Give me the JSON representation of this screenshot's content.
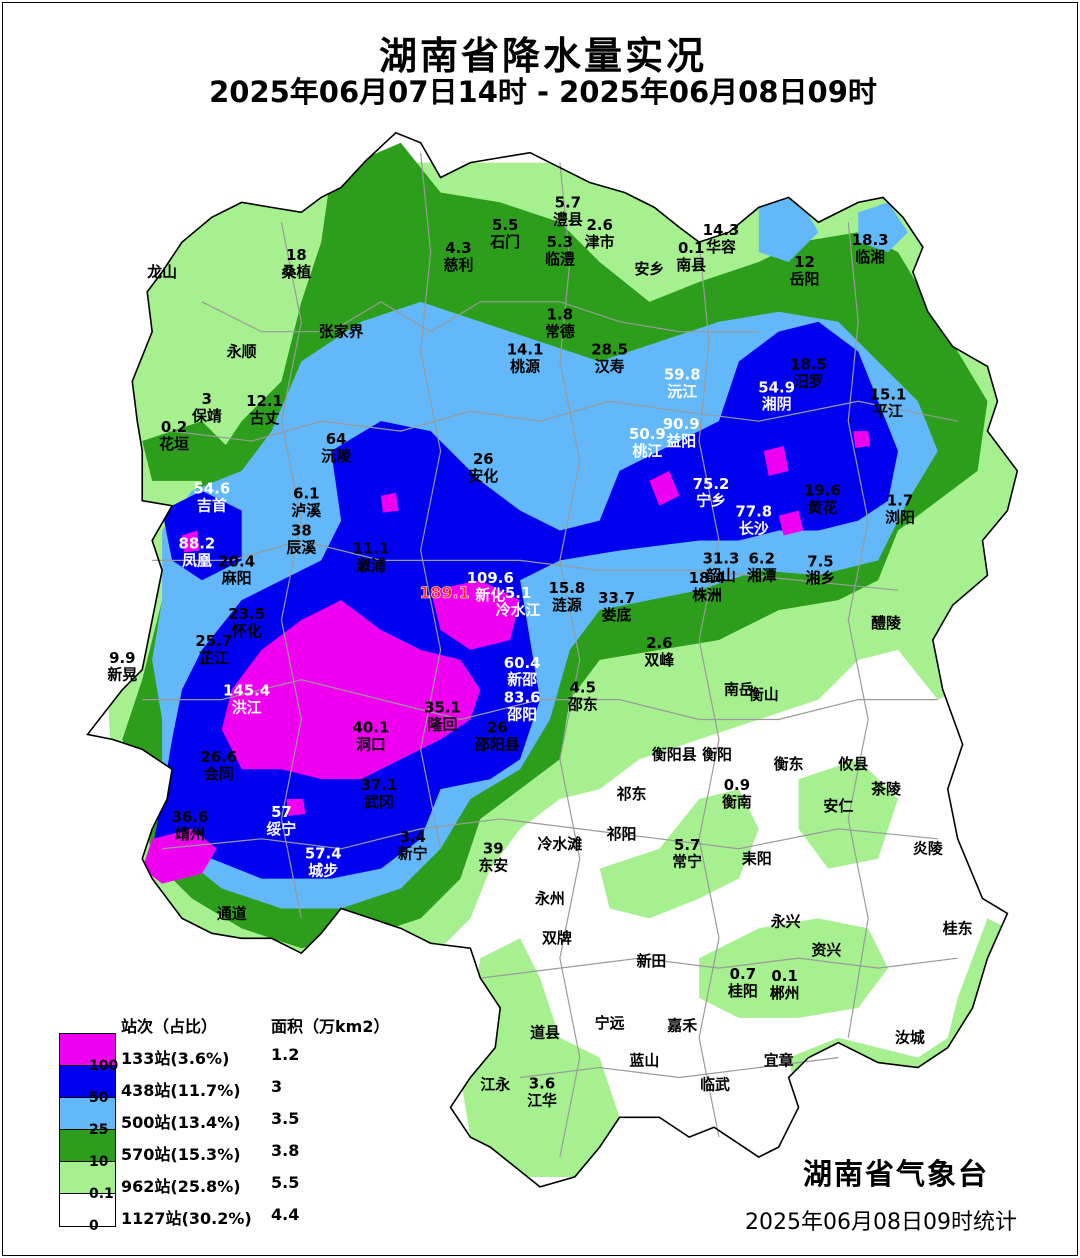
{
  "title": "湖南省降水量实况",
  "subtitle": "2025年06月07日14时 - 2025年06月08日09时",
  "agency": "湖南省气象台",
  "stat_time": "2025年06月08日09时统计",
  "colors": {
    "over100": "#f000f0",
    "r50_100": "#0000f0",
    "r25_50": "#62b8f8",
    "r10_25": "#2c9e1c",
    "r01_10": "#a6f090",
    "r0_01": "#ffffff",
    "boundary": "#9a9a9a"
  },
  "legend": {
    "header_count": "站次（占比）",
    "header_area": "面积（万km2）",
    "rows": [
      {
        "count": "133站(3.6%)",
        "area": "1.2",
        "color": "#f000f0"
      },
      {
        "count": "438站(11.7%)",
        "area": "3",
        "color": "#0000f0"
      },
      {
        "count": "500站(13.4%)",
        "area": "3.5",
        "color": "#62b8f8"
      },
      {
        "count": "570站(15.3%)",
        "area": "3.8",
        "color": "#2c9e1c"
      },
      {
        "count": "962站(25.8%)",
        "area": "5.5",
        "color": "#a6f090"
      },
      {
        "count": "1127站(30.2%)",
        "area": "4.4",
        "color": "#ffffff"
      }
    ],
    "ticks": [
      "100",
      "50",
      "25",
      "10",
      "0.1",
      "0"
    ]
  },
  "places": [
    {
      "name": "龙山"
    },
    {
      "name": "桑植",
      "value": "18"
    },
    {
      "name": "慈利",
      "value": "4.3"
    },
    {
      "name": "石门",
      "value": "5.5"
    },
    {
      "name": "澧县",
      "value": "5.7"
    },
    {
      "name": "临澧",
      "value": "5.3"
    },
    {
      "name": "津市",
      "value": "2.6"
    },
    {
      "name": "安乡"
    },
    {
      "name": "南县",
      "value": "0.1"
    },
    {
      "name": "华容",
      "value": "14.3"
    },
    {
      "name": "岳阳",
      "value": "12"
    },
    {
      "name": "临湘",
      "value": "18.3"
    },
    {
      "name": "张家界"
    },
    {
      "name": "永顺"
    },
    {
      "name": "常德",
      "value": "1.8"
    },
    {
      "name": "桃源",
      "value": "14.1"
    },
    {
      "name": "汉寿",
      "value": "28.5"
    },
    {
      "name": "沅江",
      "value": "59.8"
    },
    {
      "name": "湘阴",
      "value": "54.9"
    },
    {
      "name": "汨罗",
      "value": "18.5"
    },
    {
      "name": "平江",
      "value": "15.1"
    },
    {
      "name": "保靖",
      "value": "3"
    },
    {
      "name": "古丈",
      "value": "12.1"
    },
    {
      "name": "花垣",
      "value": "0.2"
    },
    {
      "name": "沅陵",
      "value": "64"
    },
    {
      "name": "安化",
      "value": "26"
    },
    {
      "name": "桃江",
      "value": "50.9"
    },
    {
      "name": "益阳",
      "value": "90.9"
    },
    {
      "name": "吉首",
      "value": "54.6"
    },
    {
      "name": "泸溪",
      "value": "6.1"
    },
    {
      "name": "宁乡",
      "value": "75.2"
    },
    {
      "name": "长沙",
      "value": "77.8"
    },
    {
      "name": "黄花",
      "value": "19.6"
    },
    {
      "name": "浏阳",
      "value": "1.7"
    },
    {
      "name": "辰溪",
      "value": "38"
    },
    {
      "name": "凤凰",
      "value": "88.2"
    },
    {
      "name": "麻阳",
      "value": "20.4"
    },
    {
      "name": "溆浦",
      "value": "11.1"
    },
    {
      "name": "新化",
      "value": "109.6"
    },
    {
      "name": "冷水江",
      "value": "5.1"
    },
    {
      "name": "涟源",
      "value": "15.8"
    },
    {
      "name": "娄底",
      "value": "33.7"
    },
    {
      "name": "韶山",
      "value": "31.3"
    },
    {
      "name": "湘潭",
      "value": "6.2"
    },
    {
      "name": "湘乡",
      "value": "7.5"
    },
    {
      "name": "株洲",
      "value": "18.4"
    },
    {
      "name": "怀化",
      "value": "23.5"
    },
    {
      "name": "醴陵"
    },
    {
      "name": "芷江",
      "value": "25.7"
    },
    {
      "name": "新晃",
      "value": "9.9"
    },
    {
      "name": "双峰",
      "value": "2.6"
    },
    {
      "name": "洪江",
      "value": "145.4"
    },
    {
      "name": "新邵",
      "value": "60.4"
    },
    {
      "name": "邵阳",
      "value": "83.6"
    },
    {
      "name": "邵东",
      "value": "4.5"
    },
    {
      "name": "南岳"
    },
    {
      "name": "衡山"
    },
    {
      "name": "隆回",
      "value": "35.1"
    },
    {
      "name": "洞口",
      "value": "40.1"
    },
    {
      "name": "邵阳县",
      "value": "26"
    },
    {
      "name": "衡阳县"
    },
    {
      "name": "衡阳"
    },
    {
      "name": "衡东"
    },
    {
      "name": "攸县"
    },
    {
      "name": "会同",
      "value": "26.6"
    },
    {
      "name": "衡南",
      "value": "0.9"
    },
    {
      "name": "茶陵"
    },
    {
      "name": "祁东"
    },
    {
      "name": "安仁"
    },
    {
      "name": "武冈",
      "value": "37.1"
    },
    {
      "name": "绥宁",
      "value": "57"
    },
    {
      "name": "靖州",
      "value": "36.6"
    },
    {
      "name": "炎陵"
    },
    {
      "name": "新宁",
      "value": "3.4"
    },
    {
      "name": "城步",
      "value": "57.4"
    },
    {
      "name": "东安",
      "value": "39"
    },
    {
      "name": "冷水滩"
    },
    {
      "name": "祁阳"
    },
    {
      "name": "常宁",
      "value": "5.7"
    },
    {
      "name": "耒阳"
    },
    {
      "name": "通道"
    },
    {
      "name": "永州"
    },
    {
      "name": "双牌"
    },
    {
      "name": "永兴"
    },
    {
      "name": "资兴"
    },
    {
      "name": "桂东"
    },
    {
      "name": "新田"
    },
    {
      "name": "桂阳",
      "value": "0.7"
    },
    {
      "name": "郴州",
      "value": "0.1"
    },
    {
      "name": "宁远"
    },
    {
      "name": "嘉禾"
    },
    {
      "name": "道县"
    },
    {
      "name": "汝城"
    },
    {
      "name": "蓝山"
    },
    {
      "name": "宜章"
    },
    {
      "name": "江永"
    },
    {
      "name": "江华",
      "value": "3.6"
    },
    {
      "name": "临武"
    }
  ],
  "peak_value": "189.1"
}
